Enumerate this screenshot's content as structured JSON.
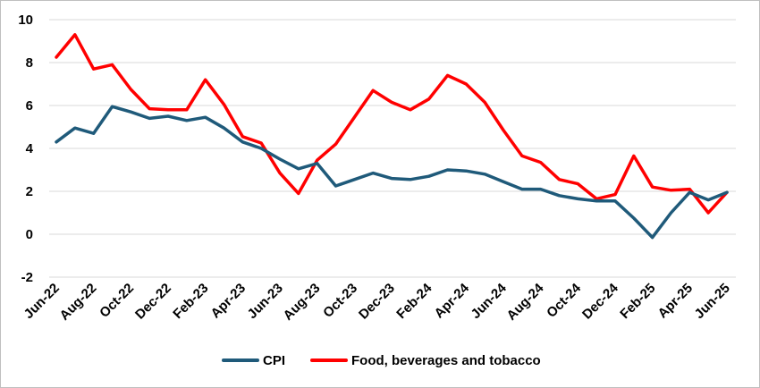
{
  "chart_data": {
    "type": "line",
    "title": "",
    "xlabel": "",
    "ylabel": "",
    "ylim": [
      -2,
      10
    ],
    "y_ticks": [
      -2,
      0,
      2,
      4,
      6,
      8,
      10
    ],
    "grid": "horizontal",
    "legend_position": "bottom",
    "x": [
      "Jun-22",
      "Jul-22",
      "Aug-22",
      "Sep-22",
      "Oct-22",
      "Nov-22",
      "Dec-22",
      "Jan-23",
      "Feb-23",
      "Mar-23",
      "Apr-23",
      "May-23",
      "Jun-23",
      "Jul-23",
      "Aug-23",
      "Sep-23",
      "Oct-23",
      "Nov-23",
      "Dec-23",
      "Jan-24",
      "Feb-24",
      "Mar-24",
      "Apr-24",
      "May-24",
      "Jun-24",
      "Jul-24",
      "Aug-24",
      "Sep-24",
      "Oct-24",
      "Nov-24",
      "Dec-24",
      "Jan-25",
      "Feb-25",
      "Mar-25",
      "Apr-25",
      "May-25",
      "Jun-25"
    ],
    "x_tick_labels": [
      "Jun-22",
      "Aug-22",
      "Oct-22",
      "Dec-22",
      "Feb-23",
      "Apr-23",
      "Jun-23",
      "Aug-23",
      "Oct-23",
      "Dec-23",
      "Feb-24",
      "Apr-24",
      "Jun-24",
      "Aug-24",
      "Oct-24",
      "Dec-24",
      "Feb-25",
      "Apr-25",
      "Jun-25"
    ],
    "series": [
      {
        "name": "CPI",
        "color": "#1f5a7a",
        "values": [
          4.3,
          4.95,
          4.7,
          5.95,
          5.7,
          5.4,
          5.5,
          5.3,
          5.45,
          4.95,
          4.3,
          4.0,
          3.5,
          3.05,
          3.3,
          2.25,
          2.55,
          2.85,
          2.6,
          2.55,
          2.7,
          3.0,
          2.95,
          2.8,
          2.45,
          2.1,
          2.1,
          1.8,
          1.65,
          1.55,
          1.55,
          0.75,
          -0.15,
          1.0,
          1.95,
          1.6,
          1.95
        ]
      },
      {
        "name": "Food, beverages and tobacco",
        "color": "#ff0000",
        "values": [
          8.25,
          9.3,
          7.7,
          7.9,
          6.75,
          5.85,
          5.8,
          5.8,
          7.2,
          6.05,
          4.55,
          4.25,
          2.85,
          1.9,
          3.45,
          4.2,
          5.45,
          6.7,
          6.15,
          5.8,
          6.3,
          7.4,
          7.0,
          6.15,
          4.85,
          3.65,
          3.35,
          2.55,
          2.35,
          1.65,
          1.85,
          3.65,
          2.2,
          2.05,
          2.1,
          1.0,
          1.95
        ]
      }
    ]
  }
}
